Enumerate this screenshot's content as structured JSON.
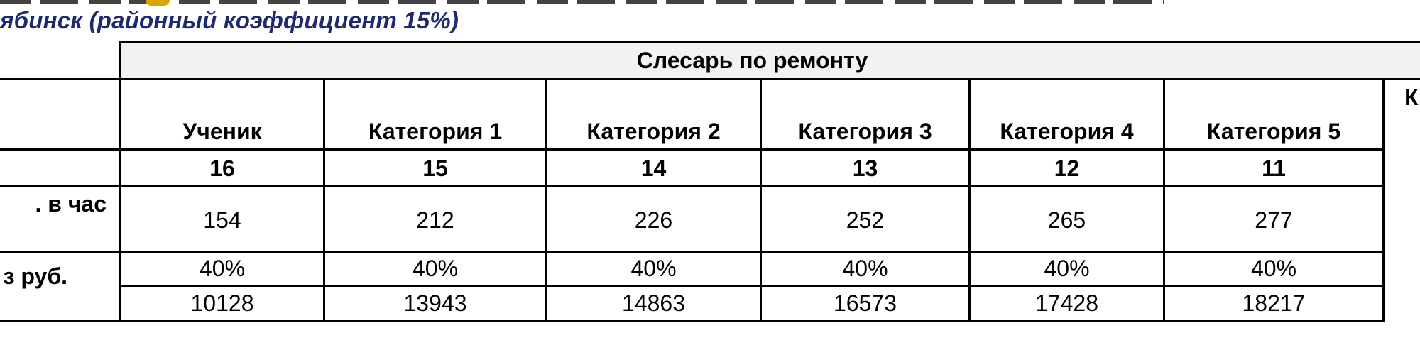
{
  "title": "ябинск (районный коэффициент 15%)",
  "group_header": "Слесарь по ремонту",
  "row_labels": {
    "rate": ". в час",
    "rub": "з руб."
  },
  "columns": [
    {
      "name": "Ученик",
      "rank": "16",
      "rate": "154",
      "pct": "40%",
      "total": "10128"
    },
    {
      "name": "Категория 1",
      "rank": "15",
      "rate": "212",
      "pct": "40%",
      "total": "13943"
    },
    {
      "name": "Категория 2",
      "rank": "14",
      "rate": "226",
      "pct": "40%",
      "total": "14863"
    },
    {
      "name": "Категория 3",
      "rank": "13",
      "rate": "252",
      "pct": "40%",
      "total": "16573"
    },
    {
      "name": "Категория 4",
      "rank": "12",
      "rate": "265",
      "pct": "40%",
      "total": "17428"
    },
    {
      "name": "Категория 5",
      "rank": "11",
      "rate": "277",
      "pct": "40%",
      "total": "18217"
    }
  ],
  "partial_next_column": "К",
  "colors": {
    "title": "#1f2a6e",
    "header_band": "#f2f2f2",
    "grid": "#000000"
  }
}
